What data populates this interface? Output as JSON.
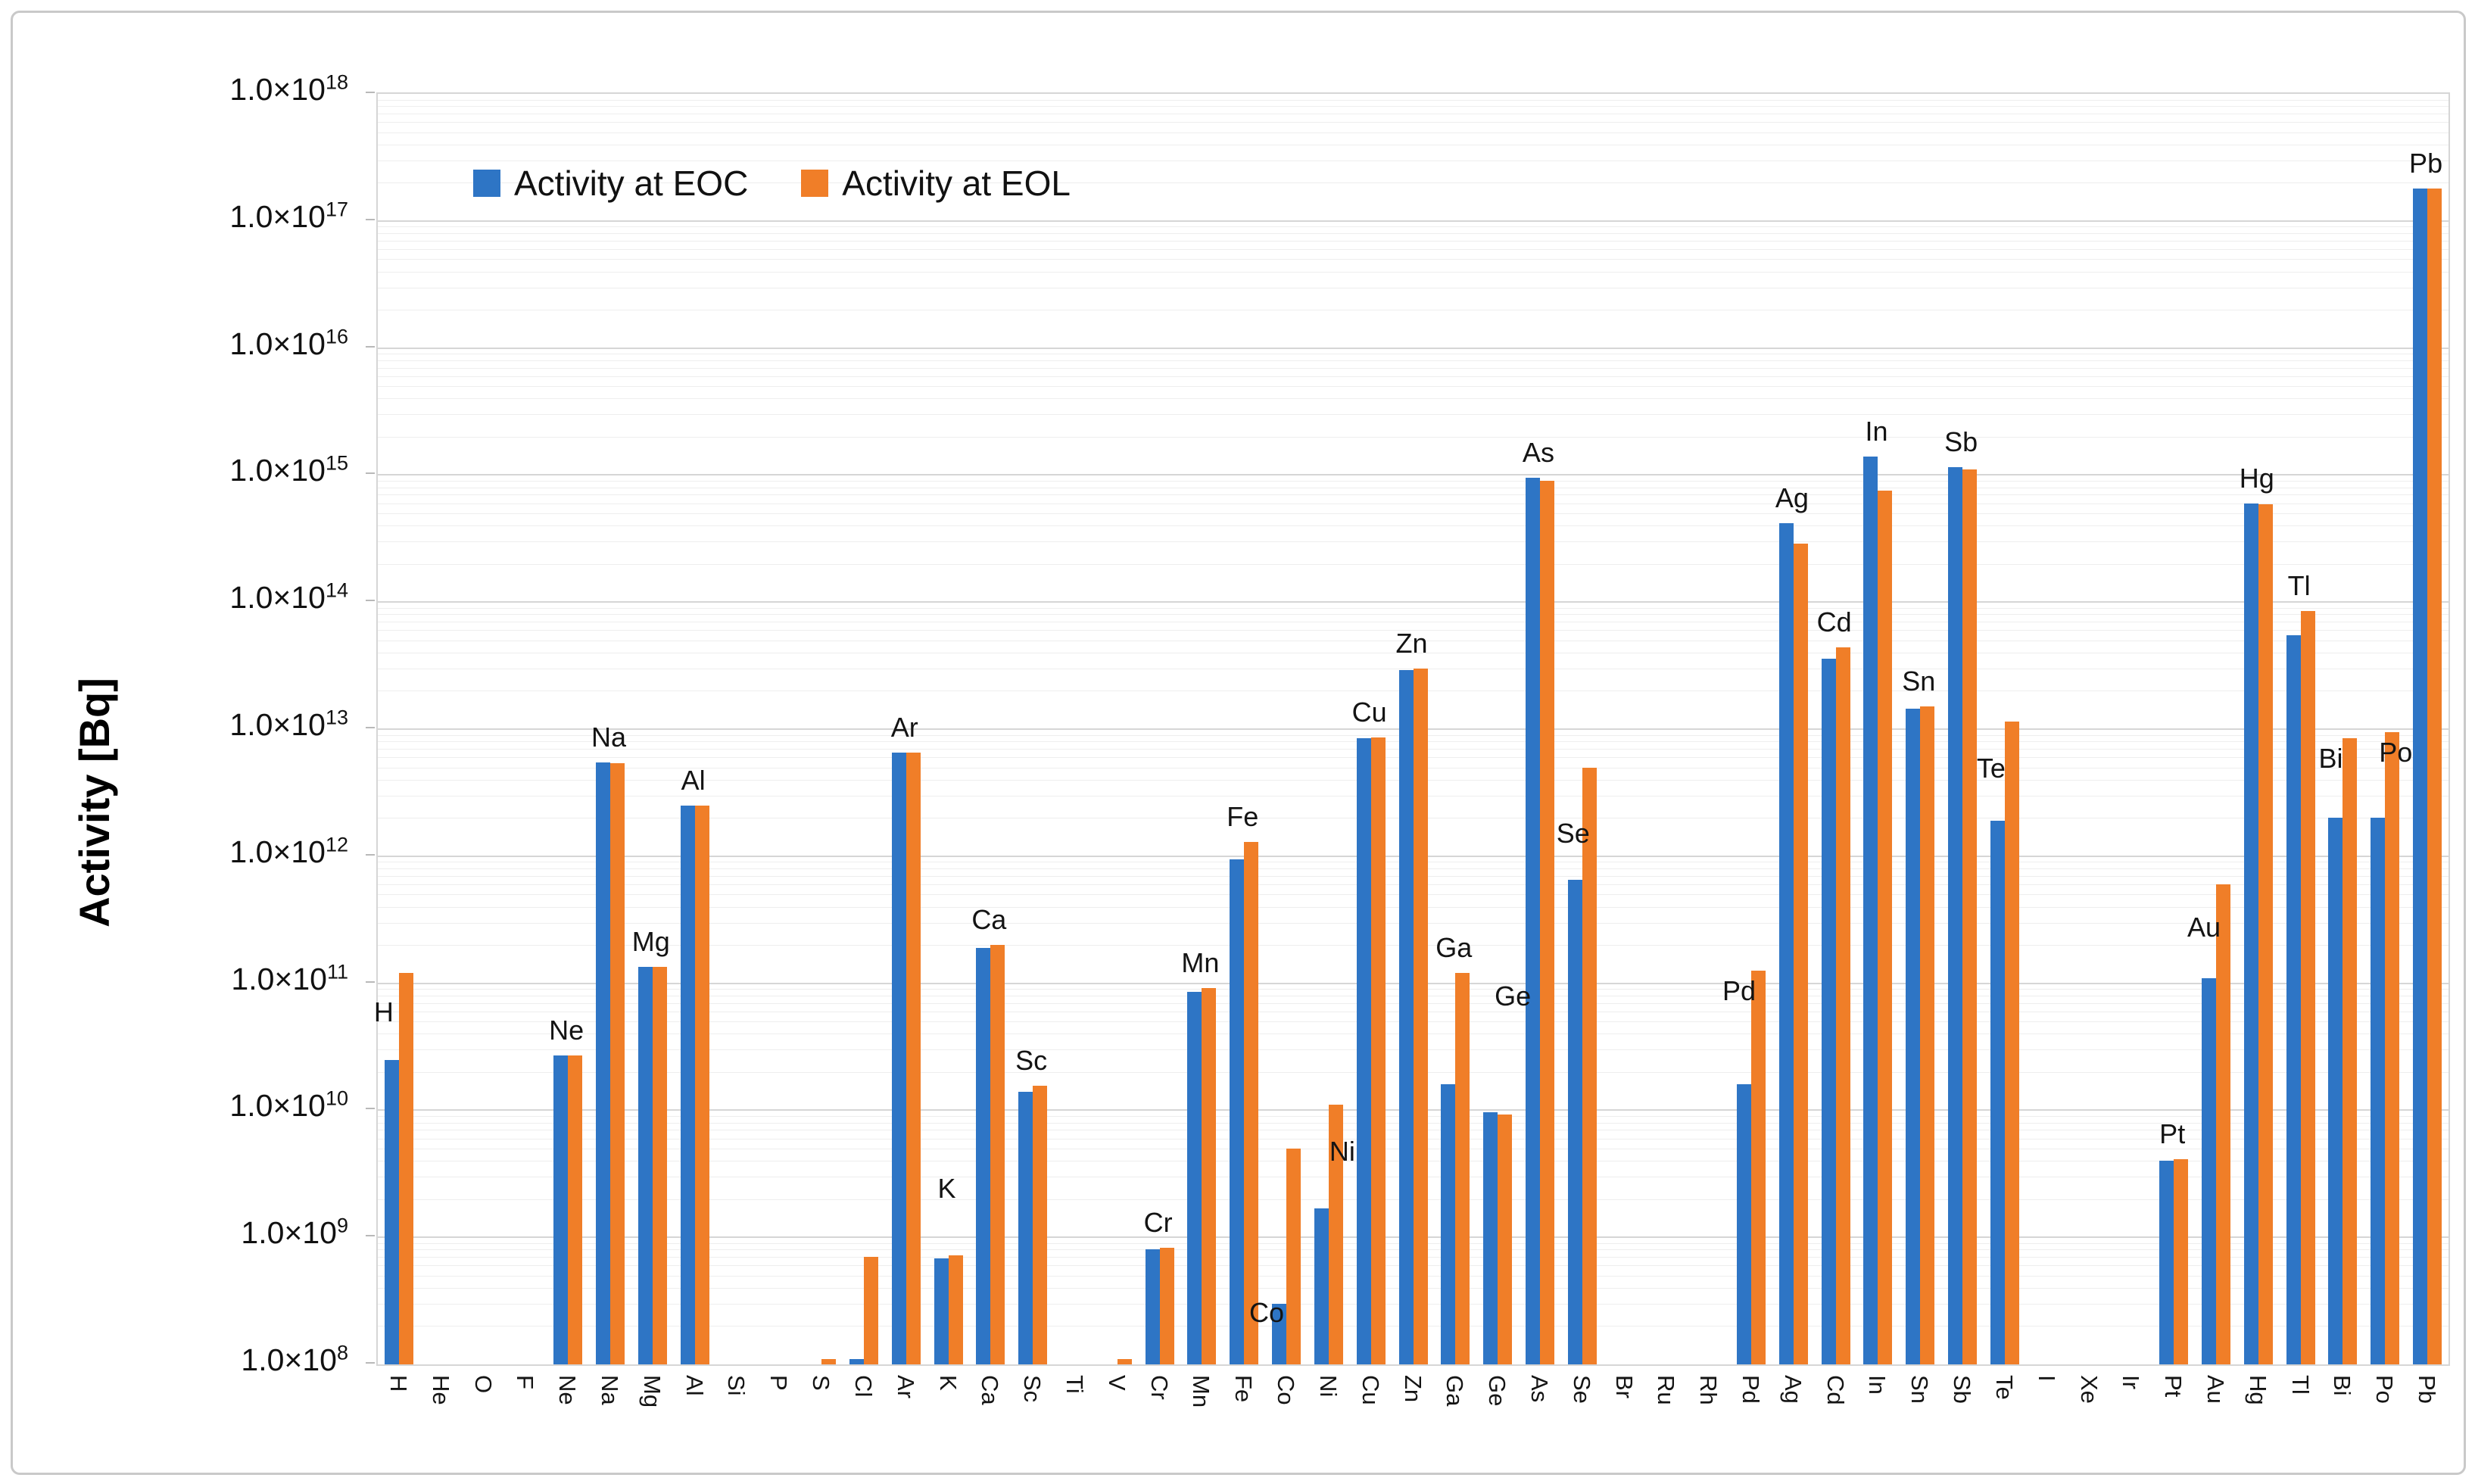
{
  "chart_data": {
    "type": "bar",
    "title": "",
    "xlabel": "",
    "ylabel": "Activity [Bq]",
    "y_scale": "log",
    "ylim": [
      100000000.0,
      1e+18
    ],
    "y_tick_prefix": "1.0×10",
    "y_tick_exponents": [
      18,
      17,
      16,
      15,
      14,
      13,
      12,
      11,
      10,
      9,
      8
    ],
    "grid": "major-and-log-minor",
    "legend_position": "inside-top-left",
    "categories": [
      "H",
      "He",
      "O",
      "F",
      "Ne",
      "Na",
      "Mg",
      "Al",
      "Si",
      "P",
      "S",
      "Cl",
      "Ar",
      "K",
      "Ca",
      "Sc",
      "Ti",
      "V",
      "Cr",
      "Mn",
      "Fe",
      "Co",
      "Ni",
      "Cu",
      "Zn",
      "Ga",
      "Ge",
      "As",
      "Se",
      "Br",
      "Ru",
      "Rh",
      "Pd",
      "Ag",
      "Cd",
      "In",
      "Sn",
      "Sb",
      "Te",
      "I",
      "Xe",
      "Ir",
      "Pt",
      "Au",
      "Hg",
      "Tl",
      "Bi",
      "Po",
      "Pb"
    ],
    "series": [
      {
        "name": "Activity at EOC",
        "color": "#2E75C5",
        "values": [
          25000000000.0,
          null,
          null,
          null,
          27000000000.0,
          5500000000000.0,
          135000000000.0,
          2500000000000.0,
          null,
          null,
          null,
          110000000.0,
          6500000000000.0,
          680000000.0,
          190000000000.0,
          14000000000.0,
          null,
          null,
          800000000.0,
          85000000000.0,
          950000000000.0,
          300000000.0,
          1700000000.0,
          8500000000000.0,
          29000000000000.0,
          16000000000.0,
          9700000000.0,
          950000000000000.0,
          650000000000.0,
          null,
          null,
          null,
          16000000000.0,
          420000000000000.0,
          36000000000000.0,
          1400000000000000.0,
          14500000000000.0,
          1150000000000000.0,
          1900000000000.0,
          null,
          null,
          null,
          4000000000.0,
          110000000000.0,
          600000000000000.0,
          55000000000000.0,
          2000000000000.0,
          2000000000000.0,
          1.8e+17
        ]
      },
      {
        "name": "Activity at EOL",
        "color": "#F07E28",
        "values": [
          120000000000.0,
          null,
          null,
          null,
          27000000000.0,
          5400000000000.0,
          135000000000.0,
          2500000000000.0,
          null,
          null,
          110000000.0,
          700000000.0,
          6500000000000.0,
          720000000.0,
          200000000000.0,
          15500000000.0,
          null,
          110000000.0,
          830000000.0,
          92000000000.0,
          1300000000000.0,
          5000000000.0,
          11000000000.0,
          8600000000000.0,
          30000000000000.0,
          120000000000.0,
          9300000000.0,
          900000000000000.0,
          5000000000000.0,
          null,
          null,
          null,
          125000000000.0,
          290000000000000.0,
          44000000000000.0,
          750000000000000.0,
          15000000000000.0,
          1100000000000000.0,
          11500000000000.0,
          null,
          null,
          null,
          4100000000.0,
          600000000000.0,
          590000000000000.0,
          85000000000000.0,
          8500000000000.0,
          9500000000000.0,
          1.8e+17
        ]
      }
    ],
    "point_labels": [
      "H",
      "Ne",
      "Na",
      "Mg",
      "Al",
      "Ar",
      "K",
      "Ca",
      "Sc",
      "Cr",
      "Mn",
      "Fe",
      "Co",
      "Ni",
      "Cu",
      "Zn",
      "Ga",
      "Ge",
      "As",
      "Se",
      "Pd",
      "Ag",
      "Cd",
      "In",
      "Sn",
      "Sb",
      "Te",
      "Pt",
      "Au",
      "Hg",
      "Tl",
      "Bi",
      "Po",
      "Pb"
    ],
    "label_nudges": {
      "H": {
        "dx": -18,
        "dy": 85
      },
      "K": {
        "dx": 0,
        "dy": -55
      },
      "Ge": {
        "dx": 22,
        "dy": -120
      },
      "Co": {
        "dx": -24,
        "dy": 250
      },
      "Ni": {
        "dx": 20,
        "dy": 95
      },
      "Se": {
        "dx": -10,
        "dy": 120
      },
      "Pd": {
        "dx": -14,
        "dy": 60
      },
      "Te": {
        "dx": -16,
        "dy": 95
      },
      "Au": {
        "dx": -14,
        "dy": 90
      },
      "Bi": {
        "dx": -14,
        "dy": 60
      },
      "Po": {
        "dx": 16,
        "dy": 60
      }
    }
  }
}
